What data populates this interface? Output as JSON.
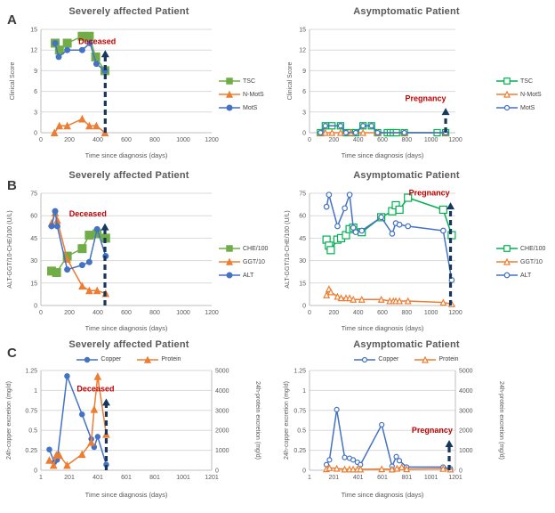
{
  "panel_labels": [
    "A",
    "B",
    "C"
  ],
  "colors": {
    "arrow": "#17375E",
    "annotation_red": "#C00000",
    "grid": "#D9D9D9",
    "axis": "#BFBFBF",
    "tick_text": "#595959",
    "blue": "#4472C4",
    "orange": "#ED7D31",
    "green": "#70AD47",
    "green_bright": "#00B050"
  },
  "chart_data": [
    {
      "id": "a-left",
      "type": "line",
      "title": "Severely affected Patient",
      "xlabel": "Time since diagnosis (days)",
      "ylabel": "Clinical Score",
      "xlim": [
        0,
        1200
      ],
      "xticks": [
        0,
        200,
        400,
        600,
        800,
        1000,
        1200
      ],
      "ylim": [
        0,
        15
      ],
      "yticks": [
        0,
        3,
        6,
        9,
        12,
        15
      ],
      "legend_position": "right",
      "annotation": {
        "label": "Deceased",
        "color": "#C00000",
        "arrow_x": 452,
        "arrow_top": 12.0,
        "text_x": 395,
        "text_y": 12.85
      },
      "series": [
        {
          "name": "TSC",
          "color": "#70AD47",
          "marker": "square",
          "marker_style": "solid",
          "marker_size": 9,
          "x": [
            100,
            130,
            185,
            290,
            340,
            385,
            450
          ],
          "y": [
            13,
            12,
            13,
            14,
            14,
            11,
            9
          ]
        },
        {
          "name": "N-MotS",
          "color": "#ED7D31",
          "marker": "triangle",
          "marker_style": "solid",
          "marker_size": 7,
          "x": [
            95,
            130,
            185,
            290,
            340,
            390,
            450
          ],
          "y": [
            0,
            1,
            1,
            2,
            1,
            1,
            0
          ]
        },
        {
          "name": "MotS",
          "color": "#4472C4",
          "marker": "circle",
          "marker_style": "solid",
          "marker_size": 6,
          "x": [
            100,
            125,
            185,
            290,
            345,
            390,
            450
          ],
          "y": [
            13,
            11,
            12,
            12,
            13,
            10,
            9
          ]
        }
      ]
    },
    {
      "id": "a-right",
      "type": "line",
      "title": "Asymptomatic Patient",
      "xlabel": "Time since diagnosis (days)",
      "ylabel": "Clinical Score",
      "xlim": [
        0,
        1200
      ],
      "xticks": [
        0,
        200,
        400,
        600,
        800,
        1000,
        1200
      ],
      "ylim": [
        0,
        15
      ],
      "yticks": [
        0,
        3,
        6,
        9,
        12,
        15
      ],
      "legend_position": "right",
      "annotation": {
        "label": "Pregnancy",
        "color": "#C00000",
        "arrow_x": 1120,
        "arrow_top": 3.6,
        "text_x": 955,
        "text_y": 4.6
      },
      "series": [
        {
          "name": "TSC",
          "color": "#00B050",
          "marker": "square",
          "marker_style": "open",
          "marker_size": 7,
          "x": [
            90,
            130,
            185,
            255,
            300,
            340,
            380,
            440,
            510,
            560,
            640,
            665,
            690,
            715,
            780,
            1050,
            1120
          ],
          "y": [
            0,
            1,
            1,
            1,
            0,
            0,
            0,
            1,
            1,
            0,
            0,
            0,
            0,
            0,
            0,
            0,
            0
          ]
        },
        {
          "name": "N-MotS",
          "color": "#ED7D31",
          "marker": "triangle",
          "marker_style": "open",
          "marker_size": 6,
          "x": [
            90,
            130,
            185,
            255,
            340,
            440,
            560,
            780,
            1120
          ],
          "y": [
            0,
            0,
            0,
            0,
            0,
            0,
            0,
            0,
            0
          ]
        },
        {
          "name": "MotS",
          "color": "#4472C4",
          "marker": "circle",
          "marker_style": "open",
          "marker_size": 5,
          "x": [
            90,
            130,
            255,
            300,
            380,
            440,
            510,
            560,
            780,
            1120
          ],
          "y": [
            0,
            1,
            1,
            0,
            0,
            1,
            1,
            0,
            0,
            0
          ]
        }
      ]
    },
    {
      "id": "b-left",
      "type": "line",
      "title": "Severely affected Patient",
      "xlabel": "Time since diagnosis (days)",
      "ylabel": "ALT-GGT/10-CHE/100 (U/L)",
      "xlim": [
        0,
        1200
      ],
      "xticks": [
        0,
        200,
        400,
        600,
        800,
        1000,
        1200
      ],
      "ylim": [
        0,
        75
      ],
      "yticks": [
        0,
        15,
        30,
        45,
        60,
        75
      ],
      "legend_position": "right",
      "annotation": {
        "label": "Deceased",
        "color": "#C00000",
        "arrow_x": 450,
        "arrow_top": 55,
        "text_x": 330,
        "text_y": 59.5
      },
      "series": [
        {
          "name": "CHE/100",
          "color": "#70AD47",
          "marker": "square",
          "marker_style": "solid",
          "marker_size": 9,
          "x": [
            75,
            110,
            185,
            290,
            340,
            395,
            455
          ],
          "y": [
            23,
            22,
            33,
            38,
            47,
            48,
            45
          ]
        },
        {
          "name": "GGT/10",
          "color": "#ED7D31",
          "marker": "triangle",
          "marker_style": "solid",
          "marker_size": 7,
          "x": [
            75,
            100,
            115,
            185,
            290,
            340,
            395,
            455
          ],
          "y": [
            55,
            62,
            57,
            31,
            13,
            10,
            10,
            8
          ]
        },
        {
          "name": "ALT",
          "color": "#4472C4",
          "marker": "circle",
          "marker_style": "solid",
          "marker_size": 6,
          "x": [
            75,
            100,
            115,
            185,
            290,
            340,
            395,
            455
          ],
          "y": [
            53,
            63,
            53,
            24,
            27,
            29,
            51,
            33
          ]
        }
      ]
    },
    {
      "id": "b-right",
      "type": "line",
      "title": "Asymptomatic Patient",
      "xlabel": "Time since diagnosis (days)",
      "ylabel": "ALT-GGT/10-CHE/100 (U/L)",
      "xlim": [
        0,
        1200
      ],
      "xticks": [
        0,
        200,
        400,
        600,
        800,
        1000,
        1200
      ],
      "ylim": [
        0,
        75
      ],
      "yticks": [
        0,
        15,
        30,
        45,
        60,
        75
      ],
      "legend_position": "right",
      "annotation": {
        "label": "Pregnancy",
        "color": "#C00000",
        "arrow_x": 1160,
        "arrow_top": 69,
        "text_x": 985,
        "text_y": 73.5
      },
      "series": [
        {
          "name": "CHE/100",
          "color": "#00B050",
          "marker": "square",
          "marker_style": "open",
          "marker_size": 8,
          "x": [
            140,
            160,
            175,
            230,
            260,
            300,
            330,
            360,
            430,
            590,
            680,
            710,
            740,
            810,
            1100,
            1170
          ],
          "y": [
            44,
            40,
            37,
            44,
            45,
            47,
            51,
            52,
            49,
            59,
            63,
            67,
            64,
            72,
            64,
            47
          ]
        },
        {
          "name": "GGT/10",
          "color": "#ED7D31",
          "marker": "triangle",
          "marker_style": "open",
          "marker_size": 6,
          "x": [
            140,
            160,
            175,
            230,
            260,
            300,
            330,
            360,
            430,
            590,
            660,
            690,
            710,
            740,
            810,
            1100,
            1170
          ],
          "y": [
            7,
            11,
            9,
            6,
            5,
            5,
            5,
            4,
            4,
            4,
            3,
            3,
            3,
            3,
            3,
            2,
            1
          ]
        },
        {
          "name": "ALT",
          "color": "#4472C4",
          "marker": "circle",
          "marker_style": "open",
          "marker_size": 5.5,
          "x": [
            140,
            160,
            230,
            290,
            330,
            360,
            380,
            430,
            590,
            680,
            710,
            740,
            810,
            1100,
            1170
          ],
          "y": [
            66,
            74,
            53,
            65,
            74,
            52,
            49,
            50,
            59,
            48,
            55,
            54,
            53,
            50,
            17
          ]
        }
      ]
    },
    {
      "id": "c-left",
      "type": "line",
      "title": "Severely affected Patient",
      "xlabel": "Time since diagnosis (days)",
      "ylabel": "24h-copper excretion (mg/d)",
      "y2label": "24h-protein excretion (mg/d)",
      "xlim": [
        1,
        1201
      ],
      "xticks": [
        1,
        201,
        401,
        601,
        801,
        1001,
        1201
      ],
      "ylim": [
        0,
        1.25
      ],
      "yticks": [
        0,
        0.25,
        0.5,
        0.75,
        1,
        1.25
      ],
      "y2lim": [
        0,
        5000
      ],
      "y2ticks": [
        0,
        1000,
        2000,
        3000,
        4000,
        5000
      ],
      "legend_position": "top",
      "annotation": {
        "label": "Deceased",
        "color": "#C00000",
        "arrow_x": 460,
        "arrow_top": 0.9,
        "text_x": 385,
        "text_y": 0.99
      },
      "series": [
        {
          "name": "Copper",
          "color": "#4472C4",
          "marker": "circle",
          "marker_style": "solid",
          "marker_size": 5.5,
          "x": [
            60,
            95,
            115,
            185,
            290,
            355,
            375,
            400,
            460
          ],
          "y": [
            0.26,
            0.1,
            0.13,
            1.18,
            0.7,
            0.39,
            0.29,
            0.42,
            0.07
          ]
        },
        {
          "name": "Protein",
          "color": "#ED7D31",
          "marker": "triangle",
          "marker_style": "solid",
          "marker_size": 7,
          "axis": "right",
          "x": [
            60,
            90,
            110,
            130,
            185,
            290,
            355,
            375,
            400,
            460
          ],
          "y": [
            500,
            250,
            760,
            760,
            250,
            800,
            1400,
            3050,
            4700,
            1800
          ]
        }
      ]
    },
    {
      "id": "c-right",
      "type": "line",
      "title": "Asymptomatic Patient",
      "xlabel": "Time since diagnosis (days)",
      "ylabel": "24h-copper excretion (mg/d)",
      "y2label": "24h-protein excretion (mg/d)",
      "xlim": [
        1,
        1201
      ],
      "xticks": [
        1,
        201,
        401,
        601,
        801,
        1001,
        1201
      ],
      "ylim": [
        0,
        1.25
      ],
      "yticks": [
        0,
        0.25,
        0.5,
        0.75,
        1,
        1.25
      ],
      "y2lim": [
        0,
        5000
      ],
      "y2ticks": [
        0,
        1000,
        2000,
        3000,
        4000,
        5000
      ],
      "legend_position": "top",
      "annotation": {
        "label": "Pregnancy",
        "color": "#C00000",
        "arrow_x": 1150,
        "arrow_top": 0.38,
        "text_x": 1010,
        "text_y": 0.47
      },
      "series": [
        {
          "name": "Copper",
          "color": "#4472C4",
          "marker": "circle",
          "marker_style": "open",
          "marker_size": 5,
          "x": [
            140,
            165,
            225,
            290,
            330,
            360,
            395,
            420,
            595,
            680,
            715,
            740,
            800,
            1100,
            1160
          ],
          "y": [
            0.07,
            0.13,
            0.76,
            0.16,
            0.15,
            0.13,
            0.1,
            0.07,
            0.57,
            0.05,
            0.17,
            0.12,
            0.04,
            0.04,
            0.02
          ]
        },
        {
          "name": "Protein",
          "color": "#ED7D31",
          "marker": "triangle",
          "marker_style": "open",
          "marker_size": 6,
          "axis": "right",
          "x": [
            140,
            165,
            225,
            290,
            330,
            360,
            395,
            420,
            595,
            680,
            720,
            760,
            800,
            1100,
            1160
          ],
          "y": [
            60,
            120,
            90,
            50,
            50,
            50,
            50,
            50,
            60,
            50,
            90,
            160,
            60,
            80,
            50
          ]
        }
      ]
    }
  ]
}
